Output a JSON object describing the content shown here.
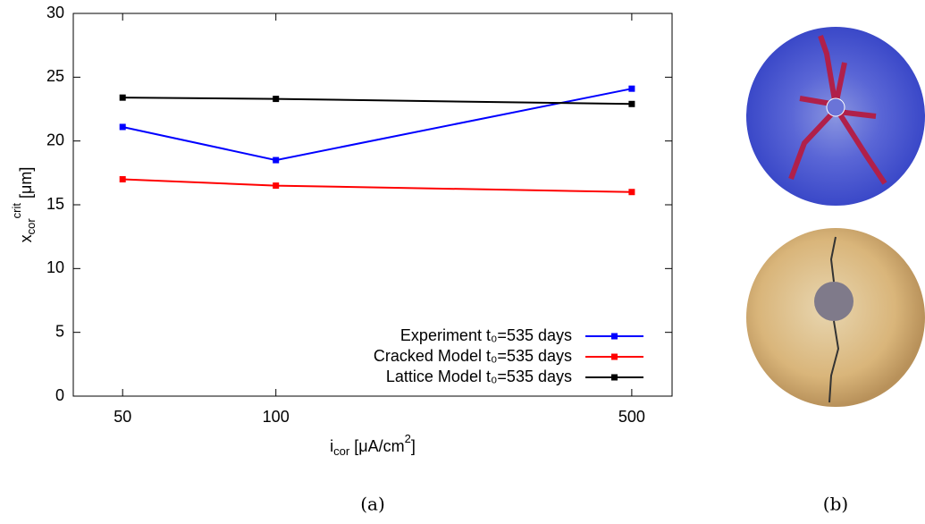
{
  "chart_data": {
    "type": "line",
    "ylabel": {
      "base": "x",
      "sub": "cor",
      "sup": "crit",
      "unit": " [μm]"
    },
    "xlabel": {
      "base": "i",
      "sub": "cor",
      "unit": " [μA/cm",
      "sup": "2",
      "end": "]"
    },
    "x": [
      50,
      100,
      500
    ],
    "xlim": [
      40,
      600
    ],
    "xticks": [
      50,
      100,
      500
    ],
    "xscale": "log",
    "ylim": [
      0,
      30
    ],
    "yticks": [
      0,
      5,
      10,
      15,
      20,
      25,
      30
    ],
    "grid": false,
    "legend": "lower right",
    "series": [
      {
        "name": "Experiment t₀=535 days",
        "color": "#0000ff",
        "values": [
          21.1,
          18.5,
          24.1
        ]
      },
      {
        "name": "Cracked Model t₀=535 days",
        "color": "#ff0000",
        "values": [
          17.0,
          16.5,
          16.0
        ]
      },
      {
        "name": "Lattice Model t₀=535 days",
        "color": "#000000",
        "values": [
          23.4,
          23.3,
          22.9
        ]
      }
    ]
  },
  "captions": [
    "(a)",
    "(b)"
  ]
}
